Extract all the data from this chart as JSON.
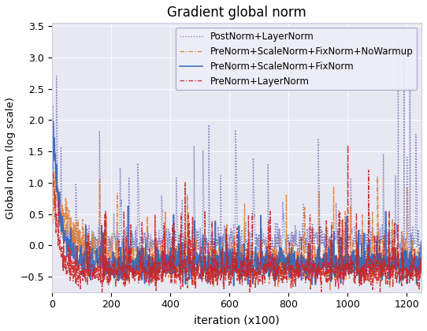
{
  "title": "Gradient global norm",
  "xlabel": "iteration (x100)",
  "ylabel": "Global norm (log scale)",
  "xlim": [
    0,
    1250
  ],
  "ylim": [
    -0.75,
    3.55
  ],
  "yticks": [
    -0.5,
    0.0,
    0.5,
    1.0,
    1.5,
    2.0,
    2.5,
    3.0,
    3.5
  ],
  "xticks": [
    0,
    200,
    400,
    600,
    800,
    1000,
    1200
  ],
  "bg_color": "#e8e8f2",
  "legend_fontsize": 8.5,
  "title_fontsize": 12,
  "series": [
    {
      "label": "PostNorm+LayerNorm",
      "color": "#7b7bbf",
      "linestyle": "dotted",
      "linewidth": 1.0,
      "alpha": 0.9,
      "seed": 42
    },
    {
      "label": "PreNorm+ScaleNorm+FixNorm+NoWarmup",
      "color": "#e07828",
      "linestyle": "dashdot",
      "linewidth": 1.0,
      "alpha": 0.85,
      "seed": 123
    },
    {
      "label": "PreNorm+ScaleNorm+FixNorm",
      "color": "#3366bb",
      "linestyle": "solid",
      "linewidth": 1.2,
      "alpha": 0.9,
      "seed": 77
    },
    {
      "label": "PreNorm+LayerNorm",
      "color": "#cc2222",
      "linestyle": "dashdot",
      "linewidth": 1.0,
      "alpha": 0.9,
      "seed": 55
    }
  ],
  "n_points": 1250
}
